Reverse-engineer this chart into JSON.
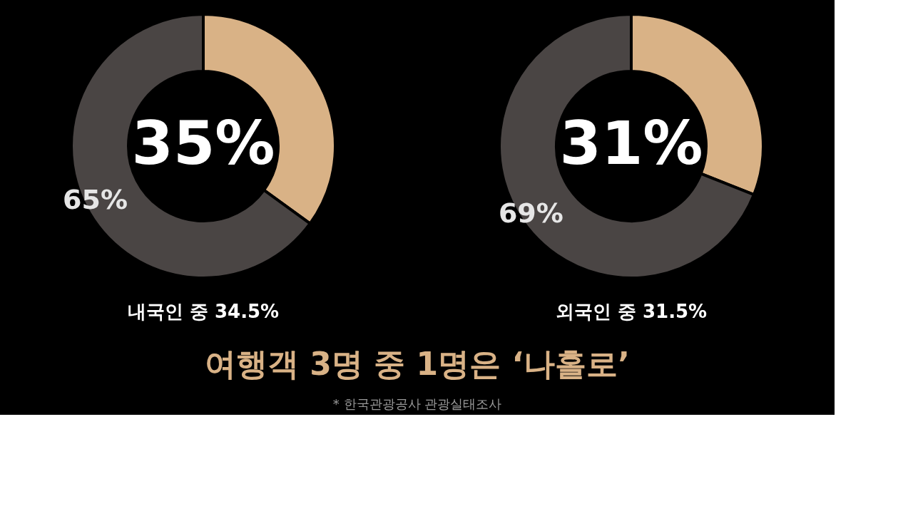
{
  "chart_data": [
    {
      "type": "donut",
      "title": "여행객 3명 중 1명은 ‘나홀로’",
      "xlabel": "내국인 중 34.5%",
      "annotations": [
        "* 한국관광공사 관광실태조사"
      ],
      "categories": [
        null,
        null
      ],
      "values": [
        35,
        65
      ],
      "colors": [
        "#d9b286",
        "#4a4544"
      ],
      "value_labels": [
        "35%",
        "65%"
      ]
    },
    {
      "type": "donut",
      "xlabel": "외국인 중 31.5%",
      "categories": [
        null,
        null
      ],
      "values": [
        31,
        69
      ],
      "colors": [
        "#d9b286",
        "#4a4544"
      ],
      "value_labels": [
        "31%",
        "69%"
      ]
    }
  ]
}
